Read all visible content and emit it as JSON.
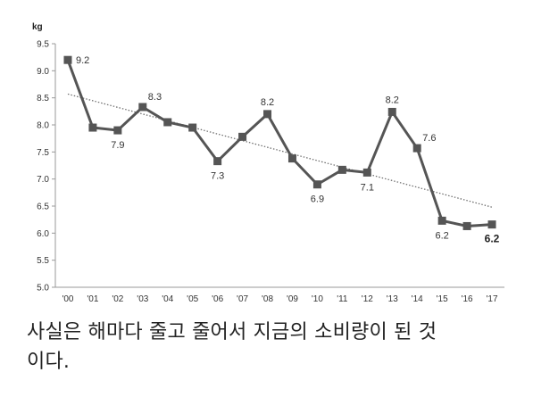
{
  "chart_data": {
    "type": "line",
    "unit": "kg",
    "categories": [
      "'00",
      "'01",
      "'02",
      "'03",
      "'04",
      "'05",
      "'06",
      "'07",
      "'08",
      "'09",
      "'10",
      "'11",
      "'12",
      "'13",
      "'14",
      "'15",
      "'16",
      "'17"
    ],
    "series": [
      {
        "values": [
          9.2,
          7.95,
          7.9,
          8.33,
          8.05,
          7.95,
          7.33,
          7.78,
          8.2,
          7.38,
          6.9,
          7.17,
          7.12,
          8.24,
          7.57,
          6.23,
          6.13,
          6.16
        ],
        "color": "#555555"
      }
    ],
    "trendline": {
      "start": 8.57,
      "end": 6.48,
      "style": "dotted"
    },
    "data_labels": [
      {
        "index": 0,
        "text": "9.2",
        "pos": "right"
      },
      {
        "index": 2,
        "text": "7.9",
        "pos": "below"
      },
      {
        "index": 3,
        "text": "8.3",
        "pos": "above-right"
      },
      {
        "index": 6,
        "text": "7.3",
        "pos": "below"
      },
      {
        "index": 8,
        "text": "8.2",
        "pos": "above"
      },
      {
        "index": 10,
        "text": "6.9",
        "pos": "below"
      },
      {
        "index": 12,
        "text": "7.1",
        "pos": "below"
      },
      {
        "index": 13,
        "text": "8.2",
        "pos": "above"
      },
      {
        "index": 14,
        "text": "7.6",
        "pos": "above-right"
      },
      {
        "index": 15,
        "text": "6.2",
        "pos": "below"
      },
      {
        "index": 17,
        "text": "6.2",
        "pos": "below",
        "bold": true
      }
    ],
    "ylim": [
      5.0,
      9.5
    ],
    "yticks": [
      "5.0",
      "5.5",
      "6.0",
      "6.5",
      "7.0",
      "7.5",
      "8.0",
      "8.5",
      "9.0",
      "9.5"
    ],
    "grid": false,
    "legend": "none"
  },
  "caption": {
    "line1": "사실은 해마다 줄고 줄어서 지금의 소비량이 된 것",
    "line2": "이다."
  }
}
